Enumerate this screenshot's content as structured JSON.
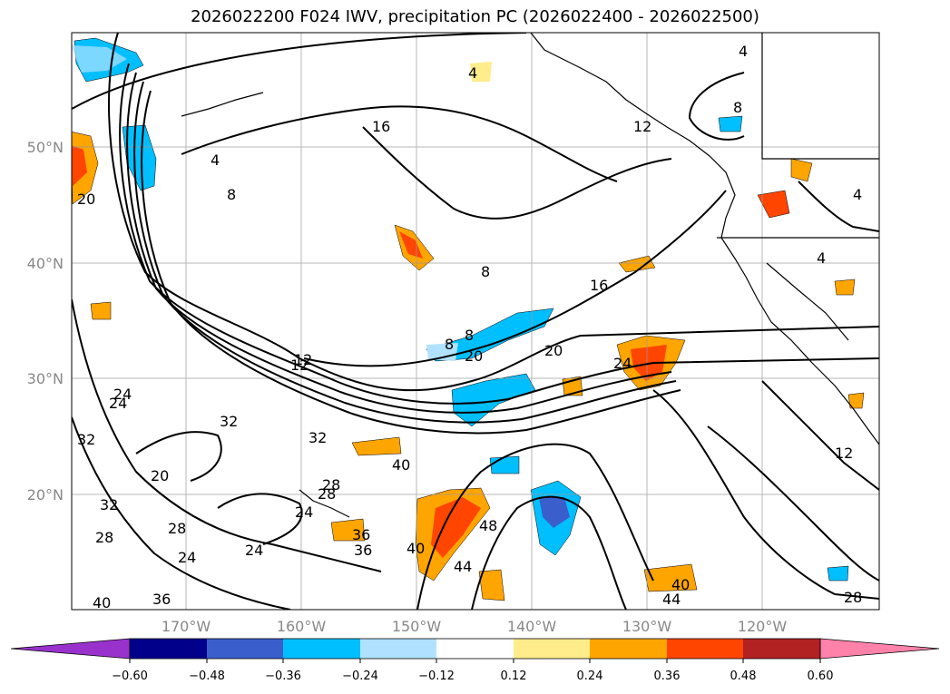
{
  "title": "2026022200 F024 IWV, precipitation PC (2026022400 - 2026022500)",
  "lat_labels": [
    "50°N",
    "40°N",
    "30°N",
    "20°N"
  ],
  "lon_labels": [
    "170°W",
    "160°W",
    "150°W",
    "140°W",
    "130°W",
    "120°W"
  ],
  "colorbar": {
    "ticks": [
      "−0.60",
      "−0.48",
      "−0.36",
      "−0.24",
      "−0.12",
      "0.12",
      "0.24",
      "0.36",
      "0.48",
      "0.60"
    ],
    "colors": [
      "#9932cc",
      "#00008b",
      "#3a5fcd",
      "#00bfff",
      "#b0e2ff",
      "#ffffff",
      "#ffec8b",
      "#ffa500",
      "#ff4500",
      "#b22222",
      "#ff82ab"
    ]
  },
  "contour_labels": [
    "4",
    "8",
    "4",
    "8",
    "12",
    "16",
    "20",
    "24",
    "32",
    "28",
    "24",
    "20",
    "8",
    "12",
    "16",
    "20",
    "24",
    "4",
    "4",
    "8",
    "12",
    "24",
    "32",
    "20",
    "28",
    "24",
    "28",
    "32",
    "40",
    "36",
    "36",
    "40",
    "44",
    "48",
    "40",
    "44",
    "28",
    "36",
    "40",
    "32",
    "28",
    "24",
    "12",
    "8",
    "4"
  ]
}
